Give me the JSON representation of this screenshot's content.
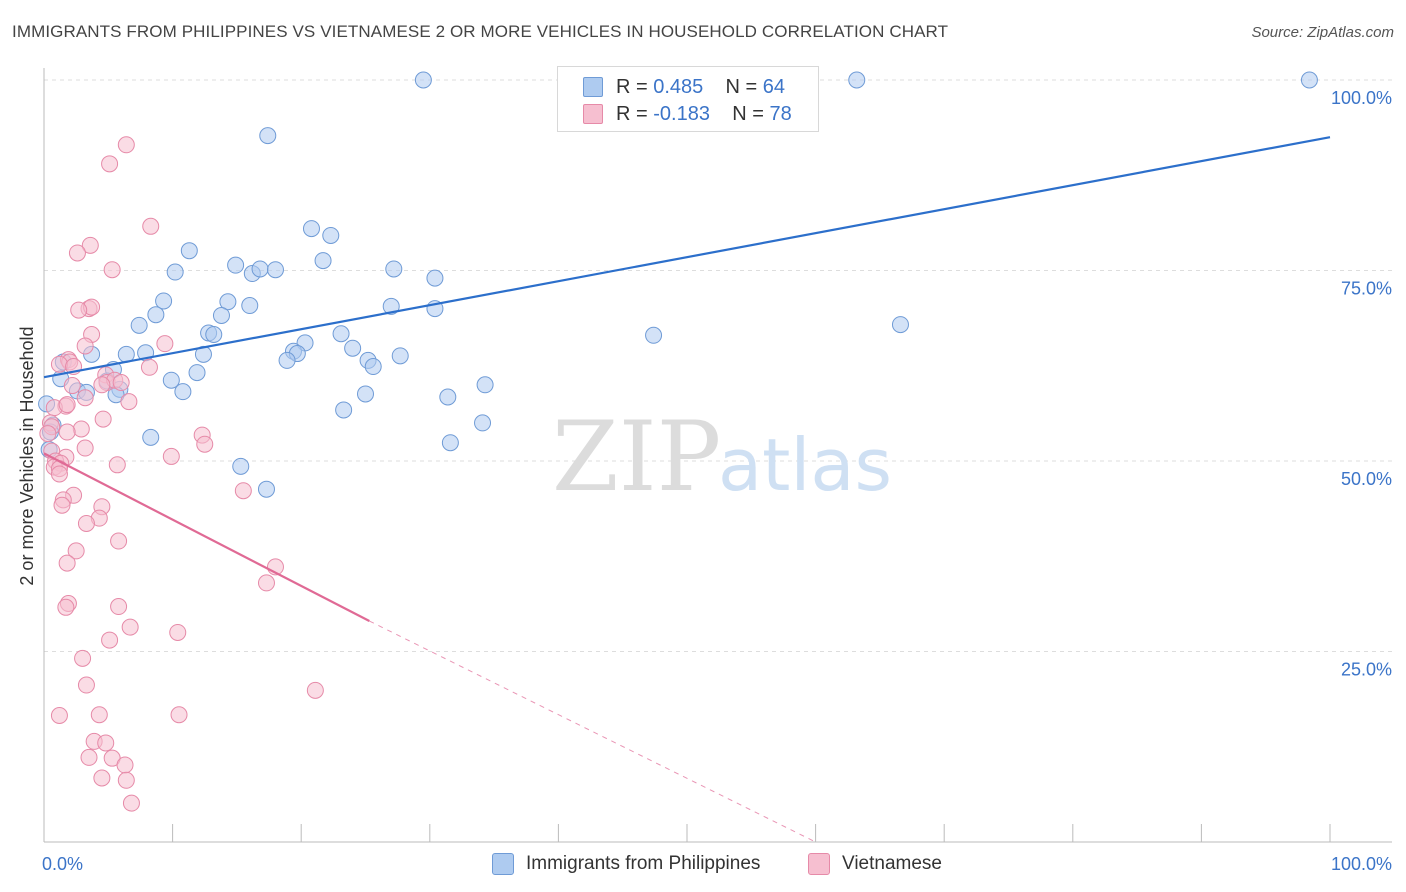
{
  "title": "IMMIGRANTS FROM PHILIPPINES VS VIETNAMESE 2 OR MORE VEHICLES IN HOUSEHOLD CORRELATION CHART",
  "source": "Source: ZipAtlas.com",
  "watermark": {
    "zip": "ZIP",
    "atlas": "atlas"
  },
  "colors": {
    "blue_fill": "#aecbf0",
    "blue_stroke": "#6f9bd6",
    "blue_line": "#2c6fcb",
    "pink_fill": "#f6bfd0",
    "pink_stroke": "#e68aa8",
    "pink_line": "#e06a95",
    "axis_label": "#3b74c8",
    "grid": "#dddddd"
  },
  "legend": {
    "rows": [
      {
        "r_label": "R = ",
        "r_value": "0.485",
        "n_label": "N = ",
        "n_value": "64"
      },
      {
        "r_label": "R = ",
        "r_value": "-0.183",
        "n_label": "N = ",
        "n_value": "78"
      }
    ]
  },
  "bottom_legend": {
    "series1": "Immigrants from Philippines",
    "series2": "Vietnamese"
  },
  "chart_data": {
    "type": "scatter",
    "title": "IMMIGRANTS FROM PHILIPPINES VS VIETNAMESE 2 OR MORE VEHICLES IN HOUSEHOLD CORRELATION CHART",
    "xlabel": "",
    "ylabel": "2 or more Vehicles in Household",
    "xlim": [
      0,
      100
    ],
    "ylim": [
      0,
      100
    ],
    "x_tick_labels": [
      "0.0%",
      "100.0%"
    ],
    "y_ticks": [
      25,
      50,
      75,
      100
    ],
    "y_tick_labels": [
      "25.0%",
      "50.0%",
      "75.0%",
      "100.0%"
    ],
    "grid": true,
    "legend_position": "top-center",
    "series": [
      {
        "name": "Immigrants from Philippines",
        "color": "#aecbf0",
        "trend": {
          "x": [
            0,
            100
          ],
          "y": [
            61.0,
            92.5
          ]
        },
        "points": [
          [
            29.5,
            100
          ],
          [
            63.2,
            100
          ],
          [
            98.4,
            100
          ],
          [
            17.4,
            92.7
          ],
          [
            20.8,
            80.5
          ],
          [
            22.3,
            79.6
          ],
          [
            11.3,
            77.6
          ],
          [
            10.2,
            74.8
          ],
          [
            14.9,
            75.7
          ],
          [
            16.2,
            74.6
          ],
          [
            16.8,
            75.2
          ],
          [
            18.0,
            75.1
          ],
          [
            21.7,
            76.3
          ],
          [
            27.2,
            75.2
          ],
          [
            30.4,
            74.0
          ],
          [
            9.3,
            71.0
          ],
          [
            14.3,
            70.9
          ],
          [
            16.0,
            70.4
          ],
          [
            27.0,
            70.3
          ],
          [
            30.4,
            70.0
          ],
          [
            8.7,
            69.2
          ],
          [
            13.8,
            69.1
          ],
          [
            7.4,
            67.8
          ],
          [
            12.8,
            66.8
          ],
          [
            13.2,
            66.6
          ],
          [
            23.1,
            66.7
          ],
          [
            47.4,
            66.5
          ],
          [
            66.6,
            67.9
          ],
          [
            20.3,
            65.5
          ],
          [
            24.0,
            64.8
          ],
          [
            19.4,
            64.4
          ],
          [
            19.7,
            64.1
          ],
          [
            3.7,
            64.0
          ],
          [
            6.4,
            64.0
          ],
          [
            7.9,
            64.2
          ],
          [
            12.4,
            64.0
          ],
          [
            18.9,
            63.2
          ],
          [
            25.2,
            63.2
          ],
          [
            27.7,
            63.8
          ],
          [
            1.5,
            63.0
          ],
          [
            25.6,
            62.4
          ],
          [
            11.9,
            61.6
          ],
          [
            5.4,
            62.0
          ],
          [
            1.3,
            60.8
          ],
          [
            4.9,
            60.5
          ],
          [
            9.9,
            60.6
          ],
          [
            34.3,
            60.0
          ],
          [
            5.9,
            59.4
          ],
          [
            2.6,
            59.2
          ],
          [
            3.3,
            59.0
          ],
          [
            10.8,
            59.1
          ],
          [
            5.6,
            58.7
          ],
          [
            25.0,
            58.8
          ],
          [
            31.4,
            58.4
          ],
          [
            0.2,
            57.5
          ],
          [
            23.3,
            56.7
          ],
          [
            0.7,
            54.7
          ],
          [
            34.1,
            55.0
          ],
          [
            8.3,
            53.1
          ],
          [
            31.6,
            52.4
          ],
          [
            0.4,
            51.5
          ],
          [
            15.3,
            49.3
          ],
          [
            17.3,
            46.3
          ],
          [
            0.5,
            53.8
          ]
        ]
      },
      {
        "name": "Vietnamese",
        "color": "#f6bfd0",
        "trend": {
          "x": [
            0,
            25.3
          ],
          "y": [
            51.0,
            29.0
          ]
        },
        "trend_dashed": {
          "x": [
            25.3,
            60
          ],
          "y": [
            29.0,
            0
          ]
        },
        "points": [
          [
            6.4,
            91.5
          ],
          [
            5.1,
            89.0
          ],
          [
            8.3,
            80.8
          ],
          [
            3.6,
            78.3
          ],
          [
            2.6,
            77.3
          ],
          [
            5.3,
            75.1
          ],
          [
            3.5,
            70.0
          ],
          [
            3.7,
            70.2
          ],
          [
            2.7,
            69.8
          ],
          [
            3.7,
            66.6
          ],
          [
            9.4,
            65.4
          ],
          [
            3.2,
            65.1
          ],
          [
            1.9,
            63.3
          ],
          [
            2.0,
            63.0
          ],
          [
            1.2,
            62.7
          ],
          [
            2.3,
            62.4
          ],
          [
            8.2,
            62.3
          ],
          [
            4.8,
            61.3
          ],
          [
            4.9,
            60.3
          ],
          [
            5.5,
            60.6
          ],
          [
            6.0,
            60.3
          ],
          [
            4.5,
            60.0
          ],
          [
            2.2,
            59.9
          ],
          [
            3.2,
            58.3
          ],
          [
            6.6,
            57.8
          ],
          [
            1.7,
            57.2
          ],
          [
            0.8,
            57.0
          ],
          [
            1.8,
            57.4
          ],
          [
            4.6,
            55.5
          ],
          [
            0.5,
            55.0
          ],
          [
            0.6,
            54.5
          ],
          [
            2.9,
            54.2
          ],
          [
            1.8,
            53.8
          ],
          [
            12.3,
            53.4
          ],
          [
            12.5,
            52.2
          ],
          [
            3.2,
            51.7
          ],
          [
            0.6,
            51.3
          ],
          [
            9.9,
            50.6
          ],
          [
            1.7,
            50.5
          ],
          [
            0.9,
            50.0
          ],
          [
            1.3,
            49.7
          ],
          [
            0.8,
            49.2
          ],
          [
            1.2,
            49.0
          ],
          [
            5.7,
            49.5
          ],
          [
            15.5,
            46.1
          ],
          [
            2.3,
            45.5
          ],
          [
            1.5,
            44.9
          ],
          [
            1.4,
            44.2
          ],
          [
            4.5,
            44.0
          ],
          [
            4.3,
            42.5
          ],
          [
            3.3,
            41.8
          ],
          [
            5.8,
            39.5
          ],
          [
            2.5,
            38.2
          ],
          [
            18.0,
            36.1
          ],
          [
            1.8,
            36.6
          ],
          [
            17.3,
            34.0
          ],
          [
            1.9,
            31.3
          ],
          [
            1.7,
            30.8
          ],
          [
            5.8,
            30.9
          ],
          [
            6.7,
            28.2
          ],
          [
            10.4,
            27.5
          ],
          [
            5.1,
            26.5
          ],
          [
            3.0,
            24.1
          ],
          [
            21.1,
            19.9
          ],
          [
            3.3,
            20.6
          ],
          [
            1.2,
            16.6
          ],
          [
            4.3,
            16.7
          ],
          [
            10.5,
            16.7
          ],
          [
            3.9,
            13.2
          ],
          [
            4.8,
            13.0
          ],
          [
            3.5,
            11.1
          ],
          [
            5.3,
            11.0
          ],
          [
            6.3,
            10.1
          ],
          [
            4.5,
            8.4
          ],
          [
            6.4,
            8.1
          ],
          [
            6.8,
            5.1
          ],
          [
            0.3,
            53.6
          ],
          [
            1.2,
            48.3
          ]
        ]
      }
    ]
  }
}
